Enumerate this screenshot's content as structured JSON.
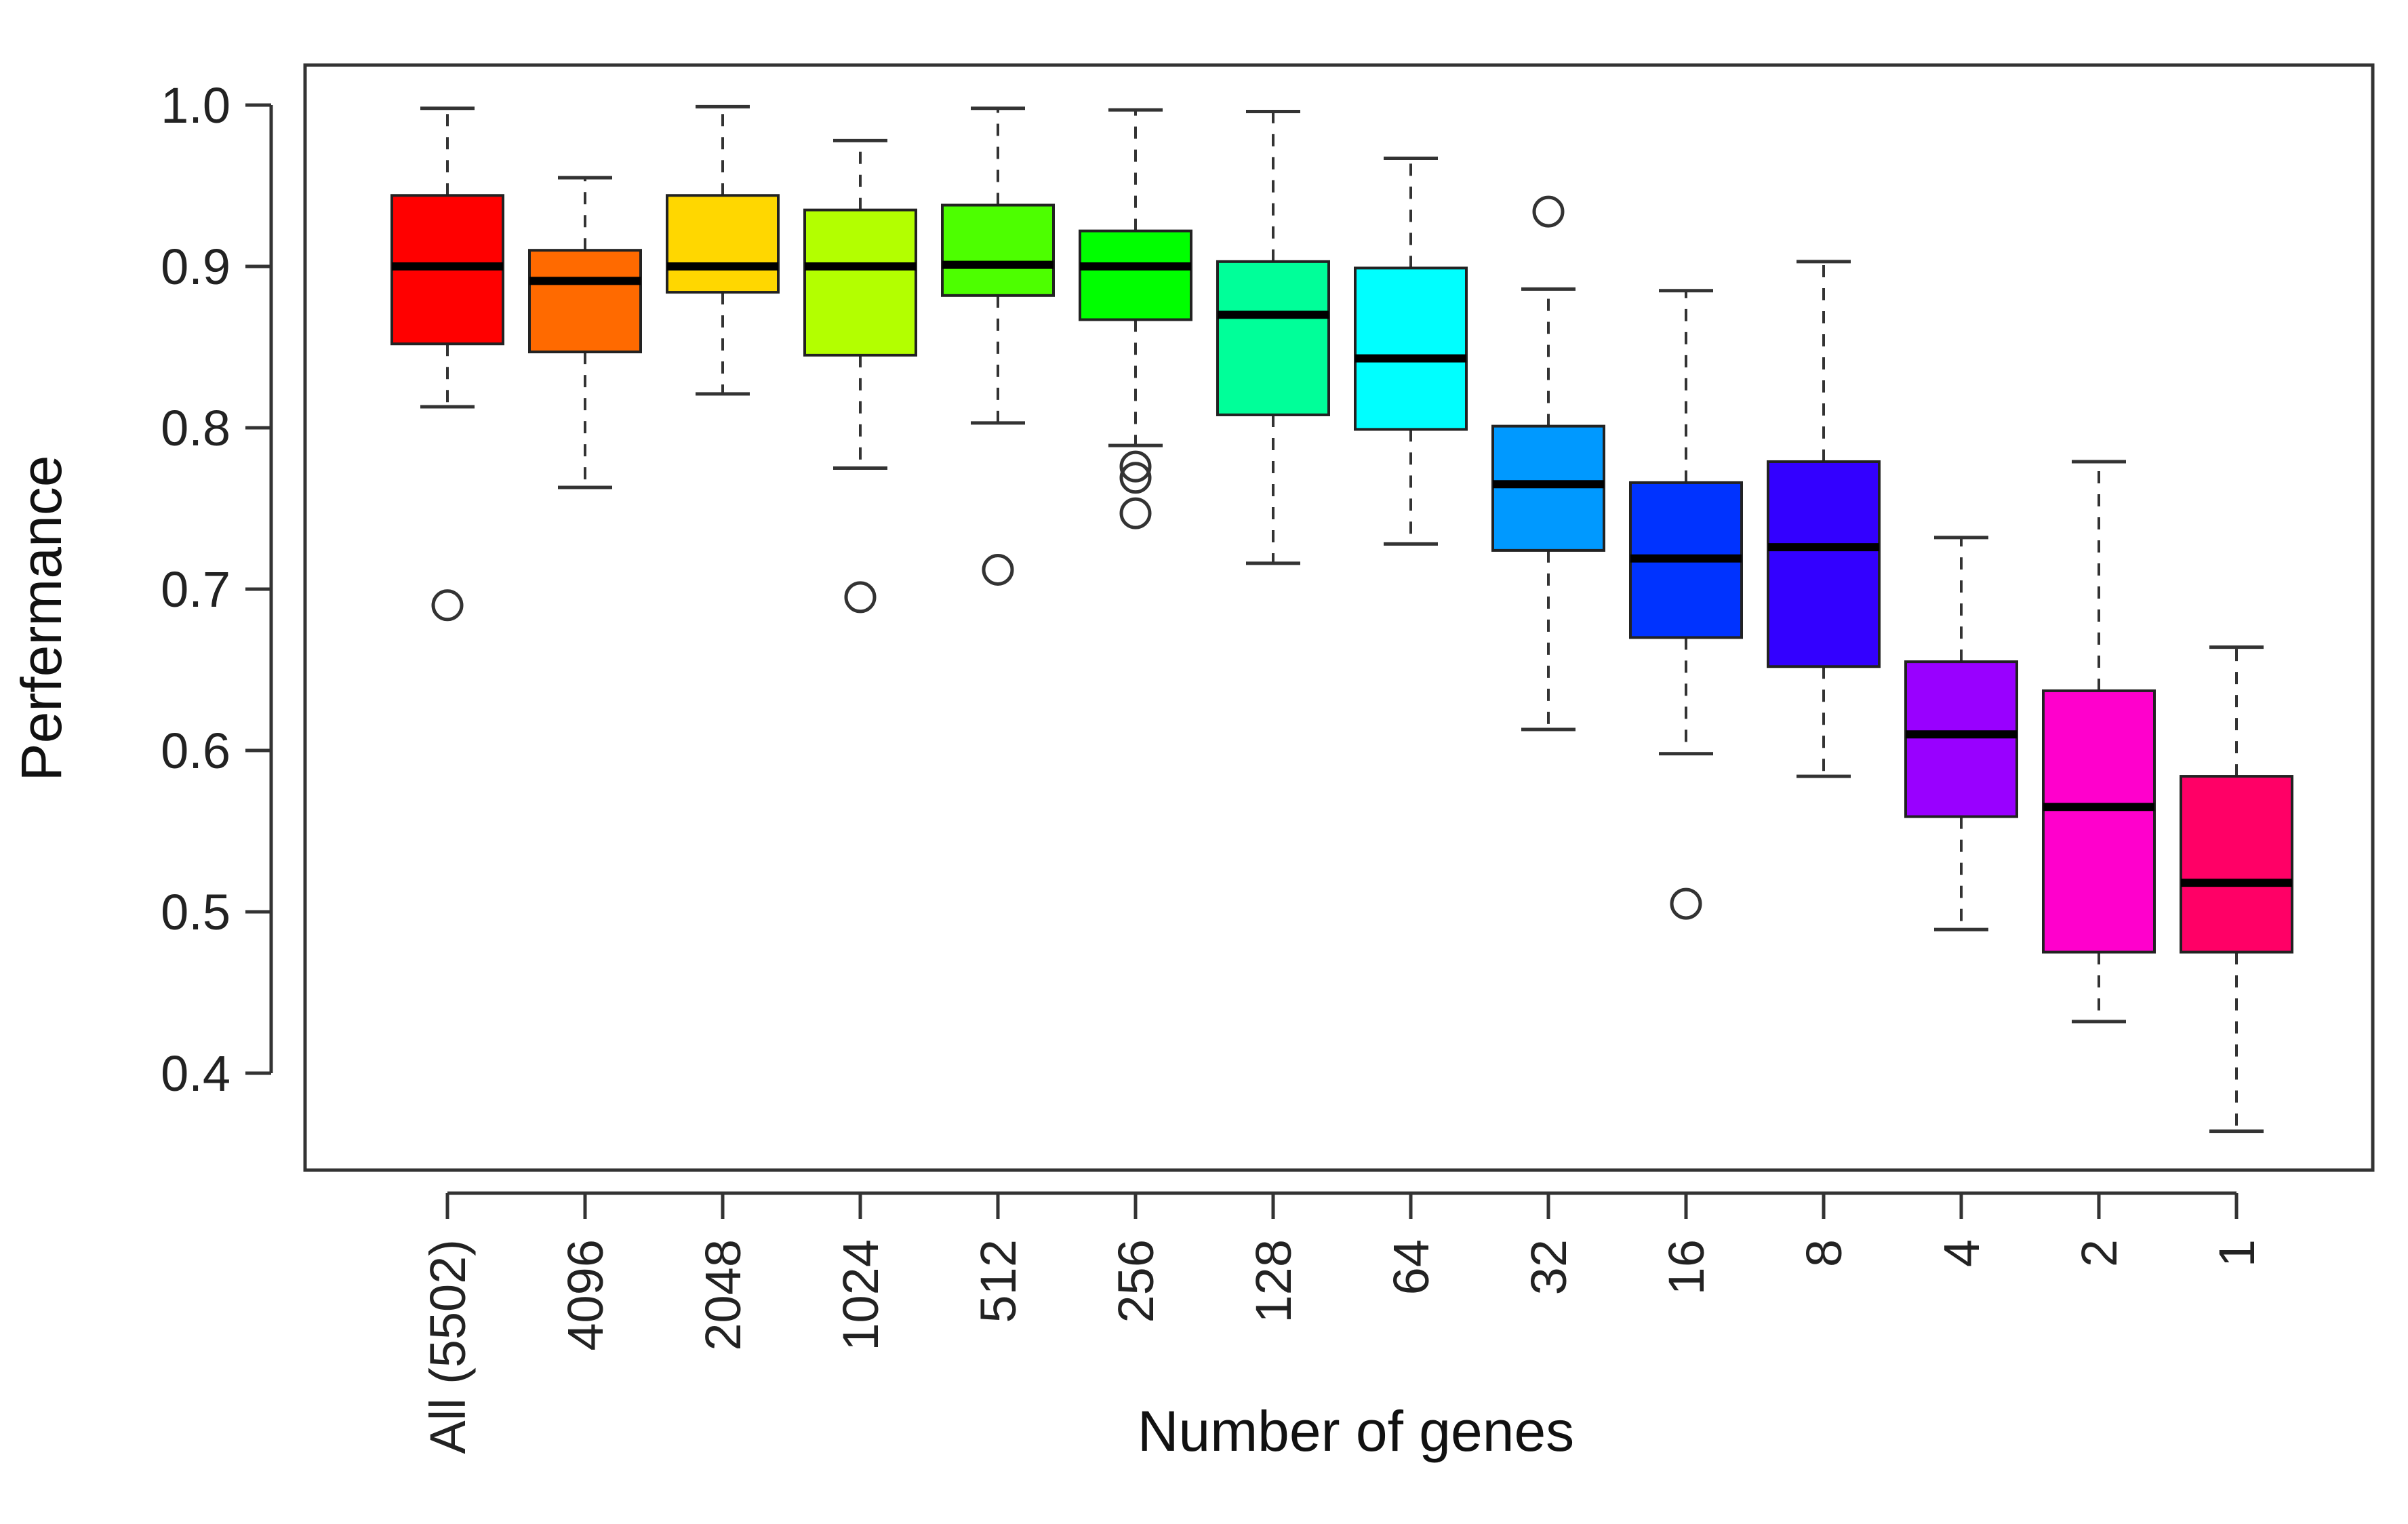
{
  "chart_data": {
    "type": "box",
    "title": "",
    "xlabel": "Number of genes",
    "ylabel": "Perfermance",
    "ylim": [
      0.34,
      1.025
    ],
    "yticks": [
      0.4,
      0.5,
      0.6,
      0.7,
      0.8,
      0.9,
      1.0
    ],
    "ytick_labels": [
      "0.4",
      "0.5",
      "0.6",
      "0.7",
      "0.8",
      "0.9",
      "1.0"
    ],
    "grid": false,
    "legend": "none",
    "categories": [
      "All (5502)",
      "4096",
      "2048",
      "1024",
      "512",
      "256",
      "128",
      "64",
      "32",
      "16",
      "8",
      "4",
      "2",
      "1"
    ],
    "boxes": [
      {
        "category": "All (5502)",
        "min": 0.813,
        "q1": 0.852,
        "median": 0.9,
        "q3": 0.944,
        "max": 0.998,
        "outliers": [
          0.69
        ],
        "color": "#ff0000"
      },
      {
        "category": "4096",
        "min": 0.763,
        "q1": 0.847,
        "median": 0.891,
        "q3": 0.91,
        "max": 0.955,
        "outliers": [],
        "color": "#ff6a00"
      },
      {
        "category": "2048",
        "min": 0.821,
        "q1": 0.884,
        "median": 0.9,
        "q3": 0.944,
        "max": 0.999,
        "outliers": [],
        "color": "#ffd700"
      },
      {
        "category": "1024",
        "min": 0.775,
        "q1": 0.845,
        "median": 0.9,
        "q3": 0.935,
        "max": 0.978,
        "outliers": [
          0.695
        ],
        "color": "#b3ff00"
      },
      {
        "category": "512",
        "min": 0.803,
        "q1": 0.882,
        "median": 0.901,
        "q3": 0.938,
        "max": 0.998,
        "outliers": [
          0.712
        ],
        "color": "#4dff00"
      },
      {
        "category": "256",
        "min": 0.789,
        "q1": 0.867,
        "median": 0.9,
        "q3": 0.922,
        "max": 0.997,
        "outliers": [
          0.776,
          0.769,
          0.747
        ],
        "color": "#00ff00"
      },
      {
        "category": "128",
        "min": 0.716,
        "q1": 0.808,
        "median": 0.87,
        "q3": 0.903,
        "max": 0.996,
        "outliers": [],
        "color": "#00ff99"
      },
      {
        "category": "64",
        "min": 0.728,
        "q1": 0.799,
        "median": 0.843,
        "q3": 0.899,
        "max": 0.967,
        "outliers": [],
        "color": "#00ffff"
      },
      {
        "category": "32",
        "min": 0.613,
        "q1": 0.724,
        "median": 0.765,
        "q3": 0.801,
        "max": 0.886,
        "outliers": [
          0.934
        ],
        "color": "#0099ff"
      },
      {
        "category": "16",
        "min": 0.598,
        "q1": 0.67,
        "median": 0.719,
        "q3": 0.766,
        "max": 0.885,
        "outliers": [
          0.505
        ],
        "color": "#0033ff"
      },
      {
        "category": "8",
        "min": 0.584,
        "q1": 0.652,
        "median": 0.726,
        "q3": 0.779,
        "max": 0.903,
        "outliers": [],
        "color": "#3300ff"
      },
      {
        "category": "4",
        "min": 0.489,
        "q1": 0.559,
        "median": 0.61,
        "q3": 0.655,
        "max": 0.732,
        "outliers": [],
        "color": "#9900ff"
      },
      {
        "category": "2",
        "min": 0.432,
        "q1": 0.475,
        "median": 0.565,
        "q3": 0.637,
        "max": 0.779,
        "outliers": [],
        "color": "#ff00cc"
      },
      {
        "category": "1",
        "min": 0.364,
        "q1": 0.475,
        "median": 0.518,
        "q3": 0.584,
        "max": 0.664,
        "outliers": [],
        "color": "#ff0066"
      }
    ]
  }
}
